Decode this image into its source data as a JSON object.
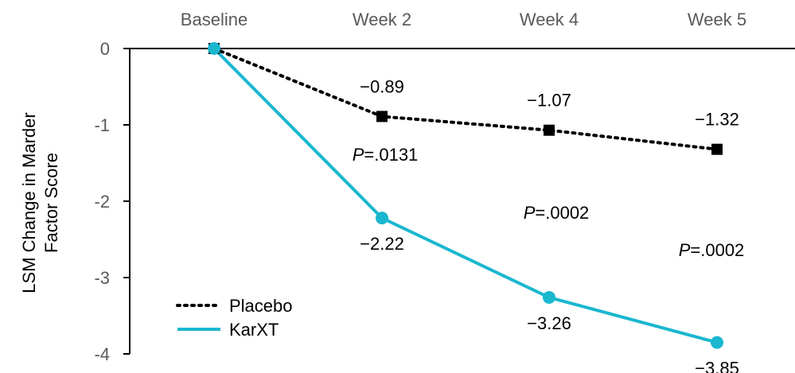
{
  "chart_data": {
    "type": "line",
    "title": "",
    "xlabel": "",
    "ylabel_lines": [
      "LSM Change in Marder",
      "Factor Score"
    ],
    "categories": [
      "Baseline",
      "Week 2",
      "Week 4",
      "Week 5"
    ],
    "yticks": [
      "0",
      "-1",
      "-2",
      "-3",
      "-4"
    ],
    "ylim": [
      -4,
      0
    ],
    "grid": false,
    "legend_position": "bottom-left",
    "series": [
      {
        "name": "Placebo",
        "values": [
          0,
          -0.89,
          -1.07,
          -1.32
        ],
        "data_labels": [
          "",
          "−0.89",
          "−1.07",
          "−1.32"
        ],
        "color": "#000000",
        "line_style": "dotted",
        "marker": "square"
      },
      {
        "name": "KarXT",
        "values": [
          0,
          -2.22,
          -3.26,
          -3.85
        ],
        "data_labels": [
          "",
          "−2.22",
          "−3.26",
          "−3.85"
        ],
        "color": "#1ab7cf",
        "line_style": "solid",
        "marker": "circle"
      }
    ],
    "annotations": [
      {
        "prefix": "P",
        "text": "=.0131",
        "at_category": "Week 2"
      },
      {
        "prefix": "P",
        "text": "=.0002",
        "at_category": "Week 4"
      },
      {
        "prefix": "P",
        "text": "=.0002",
        "at_category": "Week 5"
      }
    ]
  }
}
